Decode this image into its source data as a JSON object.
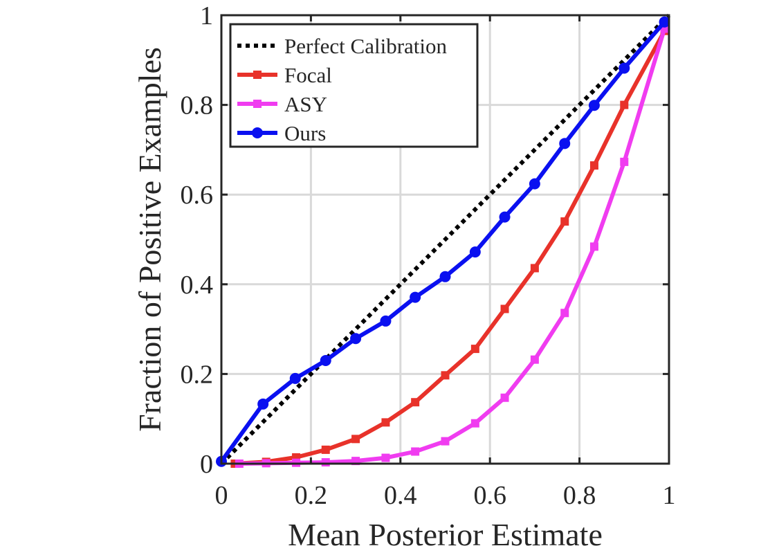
{
  "chart_data": {
    "type": "line",
    "xlabel": "Mean Posterior Estimate",
    "ylabel": "Fraction of Positive Examples",
    "xlim": [
      0,
      1
    ],
    "ylim": [
      0,
      1
    ],
    "xticks": [
      "0",
      "0.2",
      "0.4",
      "0.6",
      "0.8",
      "1"
    ],
    "yticks": [
      "0",
      "0.2",
      "0.4",
      "0.6",
      "0.8",
      "1"
    ],
    "grid": true,
    "legend_position": "top-left",
    "series": [
      {
        "name": "Perfect Calibration",
        "color": "#000000",
        "style": "dotted",
        "marker": "none",
        "x": [
          0,
          1
        ],
        "y": [
          0,
          1
        ]
      },
      {
        "name": "Focal",
        "color": "#e8322a",
        "style": "solid",
        "marker": "square",
        "x": [
          0.03,
          0.1,
          0.167,
          0.233,
          0.3,
          0.367,
          0.433,
          0.5,
          0.567,
          0.633,
          0.7,
          0.767,
          0.833,
          0.9,
          0.99
        ],
        "y": [
          0.0,
          0.004,
          0.014,
          0.031,
          0.055,
          0.092,
          0.137,
          0.197,
          0.256,
          0.345,
          0.436,
          0.54,
          0.665,
          0.8,
          0.965
        ]
      },
      {
        "name": "ASY",
        "color": "#f03cf0",
        "style": "solid",
        "marker": "square",
        "x": [
          0.04,
          0.1,
          0.167,
          0.233,
          0.3,
          0.367,
          0.433,
          0.5,
          0.567,
          0.633,
          0.7,
          0.767,
          0.833,
          0.9,
          0.99
        ],
        "y": [
          0.0,
          0.001,
          0.002,
          0.003,
          0.006,
          0.013,
          0.027,
          0.05,
          0.09,
          0.147,
          0.232,
          0.336,
          0.484,
          0.673,
          0.97
        ]
      },
      {
        "name": "Ours",
        "color": "#0a10f0",
        "style": "solid",
        "marker": "circle",
        "x": [
          0.0,
          0.093,
          0.165,
          0.233,
          0.3,
          0.367,
          0.433,
          0.5,
          0.567,
          0.633,
          0.7,
          0.767,
          0.833,
          0.9,
          0.99
        ],
        "y": [
          0.005,
          0.133,
          0.19,
          0.23,
          0.279,
          0.318,
          0.371,
          0.417,
          0.472,
          0.55,
          0.624,
          0.714,
          0.799,
          0.882,
          0.985
        ]
      }
    ]
  }
}
